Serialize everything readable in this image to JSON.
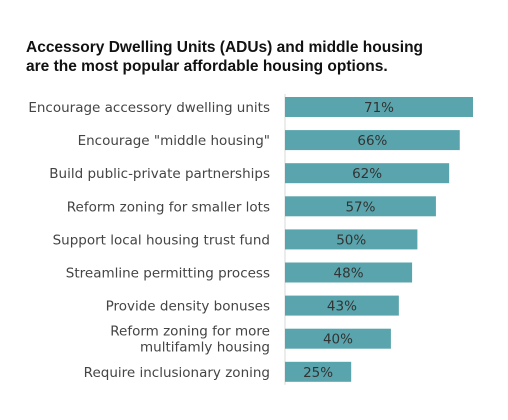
{
  "title_lines": [
    "Accessory Dwelling Units (ADUs) and middle housing",
    "are the most popular affordable housing options."
  ],
  "colors": {
    "bar": "#5aa5ad",
    "text": "#444444"
  },
  "chart_data": {
    "type": "bar",
    "orientation": "horizontal",
    "title": "Accessory Dwelling Units (ADUs) and middle housing are the most popular affordable housing options.",
    "categories": [
      [
        "Encourage accessory dwelling units"
      ],
      [
        "Encourage \"middle housing\""
      ],
      [
        "Build public-private partnerships"
      ],
      [
        "Reform zoning for smaller lots"
      ],
      [
        "Support local housing trust fund"
      ],
      [
        "Streamline permitting process"
      ],
      [
        "Provide density bonuses"
      ],
      [
        "Reform zoning for more",
        "multifamly housing"
      ],
      [
        "Require inclusionary zoning"
      ]
    ],
    "values": [
      71,
      66,
      62,
      57,
      50,
      48,
      43,
      40,
      25
    ],
    "value_labels": [
      "71%",
      "66%",
      "62%",
      "57%",
      "50%",
      "48%",
      "43%",
      "40%",
      "25%"
    ],
    "xlim": [
      0,
      71
    ],
    "unit": "%",
    "grid": false,
    "legend": "none"
  }
}
